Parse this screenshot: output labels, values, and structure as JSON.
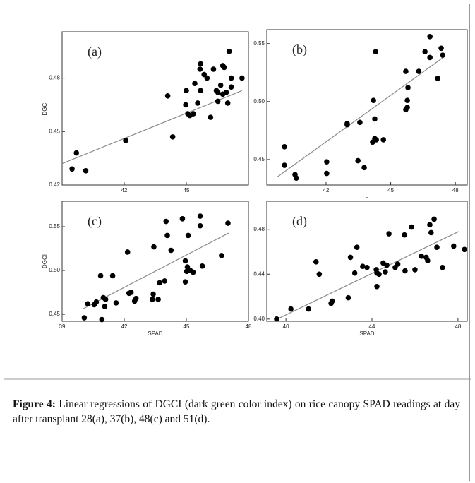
{
  "chart_data": [
    {
      "type": "scatter",
      "label": "(a)",
      "ylabel": "DGCI",
      "x": [
        39.48,
        39.69,
        40.14,
        42.07,
        44.1,
        44.34,
        45.0,
        44.97,
        45.07,
        45.17,
        45.34,
        45.41,
        45.55,
        45.66,
        45.69,
        45.69,
        45.86,
        46.0,
        46.17,
        46.31,
        46.45,
        46.52,
        46.52,
        46.66,
        46.76,
        46.76,
        46.83,
        46.93,
        47.0,
        47.07,
        47.17,
        47.17,
        47.69
      ],
      "y": [
        0.429,
        0.438,
        0.428,
        0.445,
        0.47,
        0.447,
        0.473,
        0.465,
        0.46,
        0.459,
        0.46,
        0.477,
        0.466,
        0.485,
        0.488,
        0.473,
        0.482,
        0.48,
        0.458,
        0.485,
        0.473,
        0.467,
        0.472,
        0.476,
        0.471,
        0.487,
        0.486,
        0.472,
        0.466,
        0.495,
        0.48,
        0.475,
        0.48
      ],
      "xlim": [
        39,
        48
      ],
      "ylim": [
        0.42,
        0.506
      ],
      "xticks": [
        42,
        45
      ],
      "yticks": [
        0.42,
        0.45,
        0.48
      ],
      "trendline": {
        "x": [
          39,
          47.69
        ],
        "y": [
          0.432,
          0.473
        ]
      },
      "color": "#000000"
    },
    {
      "type": "scatter",
      "label": "(b)",
      "xlabel": "-",
      "x": [
        40.07,
        40.07,
        40.56,
        40.62,
        42.03,
        42.03,
        42.98,
        42.98,
        43.57,
        43.48,
        43.77,
        44.16,
        44.2,
        44.26,
        44.3,
        44.26,
        44.33,
        44.66,
        45.7,
        45.7,
        45.77,
        45.8,
        45.77,
        46.3,
        46.59,
        46.82,
        46.82,
        47.18,
        47.34,
        47.41
      ],
      "y": [
        0.461,
        0.445,
        0.437,
        0.434,
        0.438,
        0.448,
        0.481,
        0.48,
        0.482,
        0.449,
        0.443,
        0.465,
        0.501,
        0.468,
        0.543,
        0.485,
        0.467,
        0.467,
        0.526,
        0.493,
        0.495,
        0.512,
        0.501,
        0.526,
        0.543,
        0.538,
        0.556,
        0.52,
        0.546,
        0.54
      ],
      "xlim": [
        39.25,
        48.55
      ],
      "ylim": [
        0.428,
        0.562
      ],
      "xticks": [
        42,
        45,
        48
      ],
      "yticks": [
        0.45,
        {
          "value": 0.5,
          "label": "0.50"
        },
        0.55
      ],
      "trendline": {
        "x": [
          39.74,
          47.51
        ],
        "y": [
          0.435,
          0.539
        ]
      },
      "color": "#000000"
    },
    {
      "type": "scatter",
      "label": "(c)",
      "ylabel": "DGCI",
      "xlabel": "SPAD",
      "x": [
        40.07,
        40.24,
        40.55,
        40.65,
        40.86,
        40.92,
        40.99,
        41.06,
        41.1,
        41.44,
        41.61,
        42.16,
        42.23,
        42.33,
        42.5,
        42.57,
        43.43,
        43.36,
        43.4,
        43.64,
        43.71,
        43.95,
        44.02,
        44.08,
        44.26,
        44.81,
        44.95,
        44.95,
        45.02,
        45.05,
        45.09,
        45.19,
        45.33,
        45.67,
        45.67,
        45.77,
        46.7,
        47.01
      ],
      "y": [
        0.446,
        0.462,
        0.461,
        0.464,
        0.494,
        0.444,
        0.469,
        0.459,
        0.467,
        0.494,
        0.463,
        0.521,
        0.474,
        0.475,
        0.465,
        0.468,
        0.527,
        0.467,
        0.473,
        0.467,
        0.486,
        0.488,
        0.556,
        0.54,
        0.523,
        0.559,
        0.487,
        0.511,
        0.499,
        0.504,
        0.54,
        0.5,
        0.498,
        0.562,
        0.551,
        0.505,
        0.517,
        0.554
      ],
      "xlim": [
        39,
        48
      ],
      "ylim": [
        0.442,
        0.579
      ],
      "xticks": [
        39,
        42,
        45,
        48
      ],
      "yticks": [
        0.45,
        {
          "value": 0.5,
          "label": "0.50"
        },
        0.55
      ],
      "trendline": {
        "x": [
          40.03,
          47.04
        ],
        "y": [
          0.4565,
          0.5427
        ]
      },
      "color": "#000000"
    },
    {
      "type": "scatter",
      "label": "(d)",
      "xlabel": "SPAD",
      "x": [
        39.57,
        40.23,
        41.05,
        41.4,
        41.55,
        42.1,
        42.15,
        42.9,
        43.0,
        43.2,
        43.3,
        43.57,
        43.77,
        44.2,
        44.23,
        44.23,
        44.33,
        44.52,
        44.62,
        44.69,
        44.79,
        45.08,
        45.2,
        45.51,
        45.54,
        45.84,
        46.0,
        46.3,
        46.52,
        46.59,
        46.69,
        46.75,
        46.89,
        47.02,
        47.28,
        47.8,
        48.3
      ],
      "y": [
        0.4,
        0.409,
        0.409,
        0.451,
        0.44,
        0.414,
        0.416,
        0.419,
        0.455,
        0.441,
        0.464,
        0.447,
        0.446,
        0.444,
        0.429,
        0.441,
        0.44,
        0.45,
        0.442,
        0.448,
        0.476,
        0.446,
        0.449,
        0.475,
        0.443,
        0.482,
        0.444,
        0.456,
        0.455,
        0.452,
        0.484,
        0.477,
        0.489,
        0.464,
        0.446,
        0.465,
        0.462
      ],
      "xlim": [
        39.11,
        48.43
      ],
      "ylim": [
        0.398,
        0.505
      ],
      "xticks": [
        40,
        44,
        48
      ],
      "yticks": [
        {
          "value": 0.4,
          "label": "0.40"
        },
        0.44,
        0.48
      ],
      "trendline": {
        "x": [
          39.6,
          48.03
        ],
        "y": [
          0.4,
          0.478
        ]
      },
      "color": "#000000"
    }
  ],
  "caption": {
    "label": "Figure 4:",
    "text": " Linear regressions of DGCI (dark green color index) on rice canopy SPAD readings at day after transplant 28(a), 37(b), 48(c) and 51(d)."
  }
}
